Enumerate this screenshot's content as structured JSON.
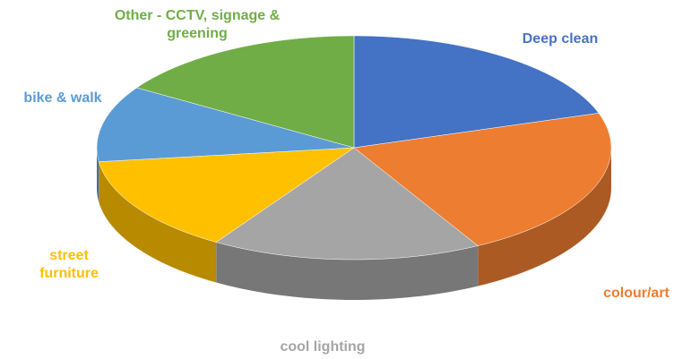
{
  "chart_data": {
    "type": "pie3d",
    "categories": [
      "Deep clean",
      "colour/art",
      "cool lighting",
      "street furniture",
      "bike & walk",
      "Other - CCTV, signage & greening"
    ],
    "values": [
      20,
      22,
      17,
      14,
      11,
      16
    ],
    "colors": [
      "#4472c4",
      "#ed7d31",
      "#a5a5a5",
      "#ffc000",
      "#5b9bd5",
      "#70ad47"
    ]
  }
}
